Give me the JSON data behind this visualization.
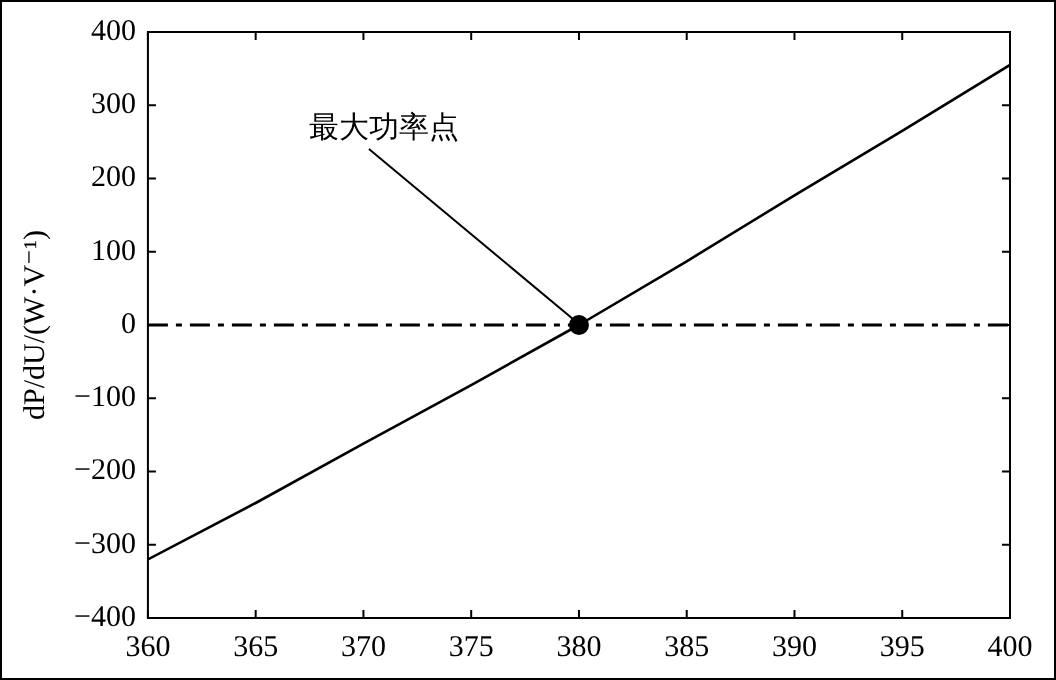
{
  "chart_data": {
    "type": "line",
    "ylabel": "dP/dU/(W·V⁻¹)",
    "xlim": [
      360,
      400
    ],
    "xticks": [
      360,
      365,
      370,
      375,
      380,
      385,
      390,
      395,
      400
    ],
    "ylim": [
      -400,
      400
    ],
    "yticks": [
      -400,
      -300,
      -200,
      -100,
      0,
      100,
      200,
      300,
      400
    ],
    "grid": false,
    "legend": false,
    "series": [
      {
        "type": "line",
        "color": "#000000",
        "marker": "none",
        "x": [
          360,
          365,
          370,
          375,
          380,
          385,
          390,
          395,
          400
        ],
        "values": [
          -320,
          -243,
          -162,
          -82,
          0,
          87,
          177,
          265,
          355
        ]
      },
      {
        "type": "scatter",
        "color": "#000000",
        "marker": "circle",
        "x": [
          380
        ],
        "values": [
          0
        ]
      }
    ],
    "ref_lines": [
      {
        "axis": "y",
        "value": 0,
        "color": "#000000",
        "line_style": "dashed"
      }
    ],
    "annotations": [
      {
        "text": "最大功率点",
        "x": 380,
        "y": 0
      }
    ]
  }
}
